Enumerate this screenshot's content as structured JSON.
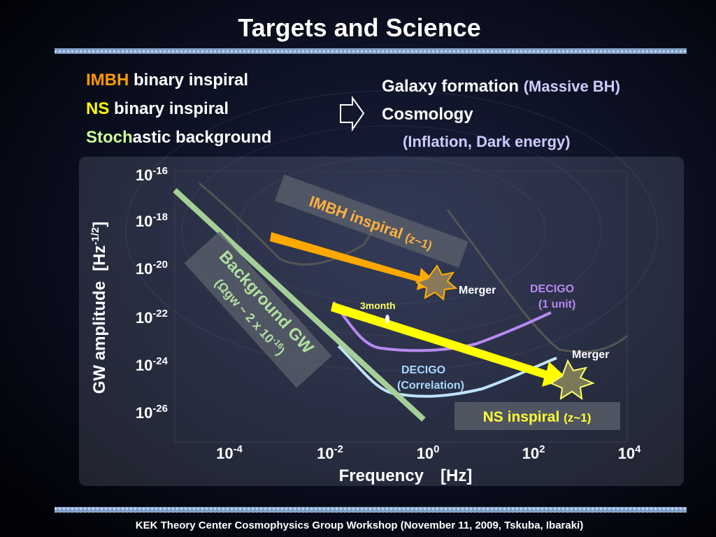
{
  "title": "Targets and Science",
  "targets": [
    {
      "highlight": "IMBH",
      "rest": " binary inspiral"
    },
    {
      "highlight": "NS",
      "rest": " binary inspiral"
    },
    {
      "highlight": "Stoch",
      "rest": "astic background"
    }
  ],
  "science": {
    "line1": "Galaxy formation",
    "line1_note": "(Massive BH)",
    "line2": "Cosmology",
    "line3": "(Inflation, Dark energy)"
  },
  "plot": {
    "y_label": "GW amplitude",
    "y_unit_base": "[Hz",
    "y_unit_exponent": "-1/2",
    "y_unit_close": "]",
    "x_label": "Frequency",
    "x_unit": "[Hz]",
    "y_ticks": [
      {
        "base": "10",
        "exponent": "-16"
      },
      {
        "base": "10",
        "exponent": "-18"
      },
      {
        "base": "10",
        "exponent": "-20"
      },
      {
        "base": "10",
        "exponent": "-22"
      },
      {
        "base": "10",
        "exponent": "-24"
      },
      {
        "base": "10",
        "exponent": "-26"
      }
    ],
    "x_ticks": [
      {
        "base": "10",
        "exponent": "-4"
      },
      {
        "base": "10",
        "exponent": "-2"
      },
      {
        "base": "10",
        "exponent": "0"
      },
      {
        "base": "10",
        "exponent": "2"
      },
      {
        "base": "10",
        "exponent": "4"
      }
    ],
    "background": {
      "name": "Background GW",
      "note_open": "(Ωgw ~ 2 x 10",
      "note_exponent": "-16",
      "note_close": ")"
    },
    "imbh": {
      "name": "IMBH inspiral",
      "note": "(z~1)"
    },
    "ns": {
      "name": "NS inspiral",
      "note": "(z~1)"
    },
    "merger_labels": [
      "Merger",
      "Merger"
    ],
    "month_label": "3month",
    "decigo_unit": [
      "DECIGO",
      "(1 unit)"
    ],
    "decigo_corr": [
      "DECIGO",
      "(Correlation)"
    ]
  },
  "footer": "KEK Theory Center Cosmophysics Group Workshop (November 11, 2009, Tskuba, Ibaraki)"
}
